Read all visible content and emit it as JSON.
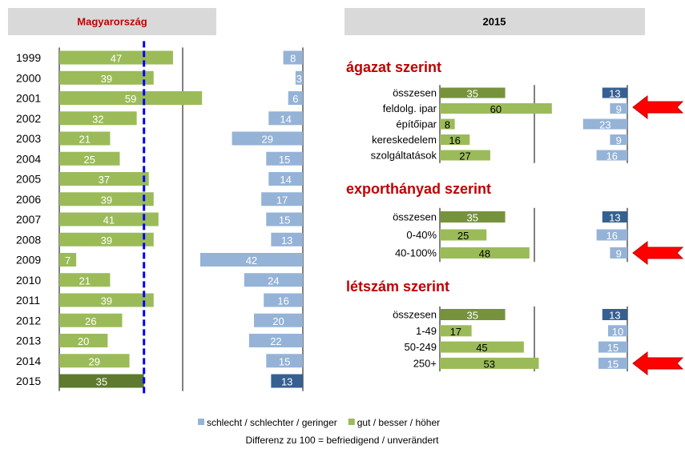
{
  "panel_title": "2015",
  "note": "Differenz zu 100 = befriedigend / unverändert",
  "chart_data": [
    {
      "type": "bar",
      "title": "Magyarország",
      "categories": [
        "1999",
        "2000",
        "2001",
        "2002",
        "2003",
        "2004",
        "2005",
        "2006",
        "2007",
        "2008",
        "2009",
        "2010",
        "2011",
        "2012",
        "2013",
        "2014",
        "2015"
      ],
      "series": [
        {
          "name": "schlecht / schlechter / geringer",
          "color": "#95b3d7",
          "highlight_color": "#366092",
          "values": [
            8,
            3,
            6,
            14,
            29,
            15,
            14,
            17,
            15,
            13,
            42,
            24,
            16,
            20,
            22,
            15,
            13
          ]
        },
        {
          "name": "gut / besser / höher",
          "color": "#9bbb59",
          "highlight_color": "#5e7a2e",
          "values": [
            47,
            39,
            59,
            32,
            21,
            25,
            37,
            39,
            41,
            39,
            7,
            21,
            39,
            26,
            20,
            29,
            35
          ]
        }
      ],
      "highlight_categories": [
        "2015"
      ],
      "reference_line": 35,
      "reference_color": "#0000ff"
    },
    {
      "type": "bar",
      "title": "ágazat szerint",
      "categories": [
        "összesen",
        "feldolg. ipar",
        "építőipar",
        "kereskedelem",
        "szolgáltatások"
      ],
      "series": [
        {
          "color": "#95b3d7",
          "highlight_color": "#366092",
          "values": [
            13,
            9,
            23,
            9,
            16
          ]
        },
        {
          "color": "#9bbb59",
          "highlight_color": "#76923c",
          "values": [
            35,
            60,
            8,
            16,
            27
          ]
        }
      ],
      "highlight_categories": [
        "összesen"
      ]
    },
    {
      "type": "bar",
      "title": "exporthányad szerint",
      "categories": [
        "összesen",
        "0-40%",
        "40-100%"
      ],
      "series": [
        {
          "color": "#95b3d7",
          "highlight_color": "#366092",
          "values": [
            13,
            16,
            9
          ]
        },
        {
          "color": "#9bbb59",
          "highlight_color": "#76923c",
          "values": [
            35,
            25,
            48
          ]
        }
      ],
      "highlight_categories": [
        "összesen"
      ]
    },
    {
      "type": "bar",
      "title": "létszám szerint",
      "categories": [
        "összesen",
        "1-49",
        "50-249",
        "250+"
      ],
      "series": [
        {
          "color": "#95b3d7",
          "highlight_color": "#366092",
          "values": [
            13,
            10,
            15,
            15
          ]
        },
        {
          "color": "#9bbb59",
          "highlight_color": "#76923c",
          "values": [
            35,
            17,
            45,
            53
          ]
        }
      ],
      "highlight_categories": [
        "összesen"
      ]
    }
  ]
}
